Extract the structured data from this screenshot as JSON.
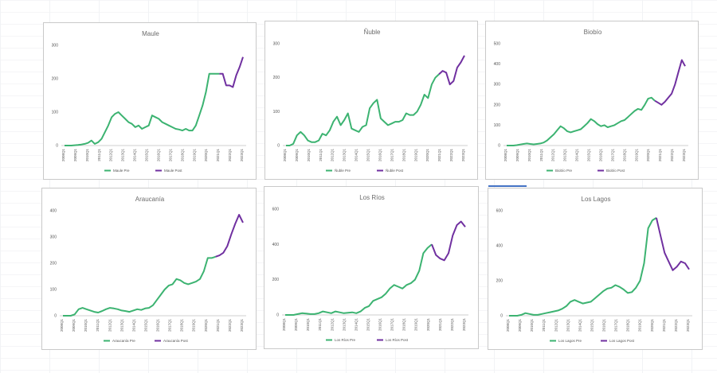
{
  "colors": {
    "pre": "#3cb371",
    "post": "#7030a0",
    "axis": "#bfbfbf",
    "title": "#6b6b6b"
  },
  "chart_data": [
    {
      "type": "line",
      "title": "Maule",
      "ylim": [
        0,
        300
      ],
      "yticks": [
        0,
        100,
        200,
        300
      ],
      "xtick_labels": [
        "2008Q1",
        "2009Q1",
        "2010Q1",
        "2011Q1",
        "2012Q1",
        "2013Q1",
        "2014Q1",
        "2015Q1",
        "2016Q1",
        "2017Q1",
        "2018Q1",
        "2019Q1",
        "2020Q1",
        "2021Q1",
        "2022Q1",
        "2023Q1"
      ],
      "series": [
        {
          "name": "Maule Pre",
          "values": [
            0,
            0,
            0,
            1,
            2,
            3,
            5,
            8,
            15,
            5,
            10,
            20,
            40,
            60,
            85,
            95,
            100,
            90,
            80,
            70,
            65,
            55,
            60,
            50,
            55,
            60,
            90,
            85,
            80,
            70,
            65,
            60,
            55,
            50,
            48,
            45,
            50,
            45,
            45,
            60,
            90,
            120,
            160,
            215,
            215,
            215,
            215
          ]
        },
        {
          "name": "Maule Post",
          "values": [
            215,
            215,
            180,
            180,
            175,
            210,
            235,
            265
          ]
        }
      ]
    },
    {
      "type": "line",
      "title": "Ñuble",
      "ylim": [
        0,
        300
      ],
      "yticks": [
        0,
        100,
        200,
        300
      ],
      "xtick_labels": [
        "2008Q1",
        "2009Q1",
        "2010Q1",
        "2011Q1",
        "2012Q1",
        "2013Q1",
        "2014Q1",
        "2015Q1",
        "2016Q1",
        "2017Q1",
        "2018Q1",
        "2019Q1",
        "2020Q1",
        "2021Q1",
        "2022Q1",
        "2023Q1"
      ],
      "series": [
        {
          "name": "Ñuble Pre",
          "values": [
            0,
            0,
            5,
            30,
            40,
            30,
            15,
            10,
            10,
            15,
            35,
            30,
            45,
            70,
            85,
            60,
            75,
            95,
            50,
            45,
            40,
            55,
            60,
            110,
            125,
            135,
            80,
            70,
            60,
            65,
            70,
            70,
            75,
            95,
            90,
            90,
            100,
            120,
            150,
            140,
            180,
            200,
            210
          ]
        },
        {
          "name": "Ñuble Post",
          "values": [
            210,
            220,
            215,
            180,
            190,
            230,
            245,
            265
          ]
        }
      ]
    },
    {
      "type": "line",
      "title": "Biobío",
      "ylim": [
        0,
        500
      ],
      "yticks": [
        0,
        100,
        200,
        300,
        400,
        500
      ],
      "xtick_labels": [
        "2008Q1",
        "2009Q1",
        "2010Q1",
        "2011Q1",
        "2012Q1",
        "2013Q1",
        "2014Q1",
        "2015Q1",
        "2016Q1",
        "2017Q1",
        "2018Q1",
        "2019Q1",
        "2020Q1",
        "2021Q1",
        "2022Q1",
        "2023Q1"
      ],
      "series": [
        {
          "name": "Biobío Pre",
          "values": [
            0,
            0,
            0,
            2,
            5,
            8,
            10,
            8,
            6,
            8,
            10,
            15,
            25,
            40,
            55,
            75,
            95,
            85,
            70,
            65,
            70,
            75,
            80,
            95,
            110,
            130,
            120,
            105,
            95,
            100,
            90,
            95,
            100,
            110,
            120,
            125,
            140,
            155,
            170,
            180,
            175,
            200,
            230,
            235,
            220
          ]
        },
        {
          "name": "Biobío Post",
          "values": [
            220,
            210,
            200,
            215,
            235,
            255,
            300,
            360,
            420,
            390
          ]
        }
      ]
    },
    {
      "type": "line",
      "title": "Araucanía",
      "ylim": [
        0,
        400
      ],
      "yticks": [
        0,
        100,
        200,
        300,
        400
      ],
      "xtick_labels": [
        "2008Q1",
        "2009Q1",
        "2010Q1",
        "2011Q1",
        "2012Q1",
        "2013Q1",
        "2014Q1",
        "2015Q1",
        "2016Q1",
        "2017Q1",
        "2018Q1",
        "2019Q1",
        "2020Q1",
        "2021Q1",
        "2022Q1",
        "2023Q1"
      ],
      "series": [
        {
          "name": "Araucanía Pre",
          "values": [
            0,
            0,
            0,
            5,
            25,
            30,
            25,
            20,
            15,
            12,
            18,
            25,
            30,
            28,
            25,
            20,
            18,
            15,
            20,
            25,
            22,
            28,
            30,
            40,
            60,
            80,
            100,
            115,
            120,
            140,
            135,
            125,
            120,
            125,
            130,
            140,
            170,
            220,
            220,
            225
          ]
        },
        {
          "name": "Araucanía Post",
          "values": [
            225,
            230,
            240,
            265,
            310,
            350,
            385,
            355
          ]
        }
      ]
    },
    {
      "type": "line",
      "title": "Los Ríos",
      "ylim": [
        0,
        600
      ],
      "yticks": [
        0,
        200,
        400,
        600
      ],
      "xtick_labels": [
        "2008Q1",
        "2009Q1",
        "2010Q1",
        "2011Q1",
        "2012Q1",
        "2013Q1",
        "2014Q1",
        "2015Q1",
        "2016Q1",
        "2017Q1",
        "2018Q1",
        "2019Q1",
        "2020Q1",
        "2021Q1",
        "2022Q1",
        "2023Q1"
      ],
      "series": [
        {
          "name": "Los Ríos Pre",
          "values": [
            0,
            0,
            0,
            5,
            10,
            8,
            5,
            5,
            10,
            20,
            15,
            10,
            20,
            15,
            10,
            12,
            15,
            10,
            20,
            40,
            50,
            80,
            90,
            100,
            120,
            150,
            170,
            160,
            150,
            170,
            180,
            200,
            250,
            350,
            380,
            400
          ]
        },
        {
          "name": "Los Ríos Post",
          "values": [
            400,
            340,
            320,
            310,
            350,
            450,
            510,
            530,
            500
          ]
        }
      ]
    },
    {
      "type": "line",
      "title": "Los Lagos",
      "ylim": [
        0,
        600
      ],
      "yticks": [
        0,
        200,
        400,
        600
      ],
      "xtick_labels": [
        "2008Q1",
        "2009Q1",
        "2010Q1",
        "2011Q1",
        "2012Q1",
        "2013Q1",
        "2014Q1",
        "2015Q1",
        "2016Q1",
        "2017Q1",
        "2018Q1",
        "2019Q1",
        "2020Q1",
        "2021Q1",
        "2022Q1",
        "2023Q1"
      ],
      "series": [
        {
          "name": "Los Lagos Pre",
          "values": [
            0,
            0,
            0,
            5,
            15,
            10,
            5,
            5,
            10,
            15,
            20,
            25,
            30,
            40,
            55,
            80,
            90,
            80,
            70,
            75,
            80,
            100,
            120,
            140,
            155,
            160,
            175,
            165,
            150,
            130,
            135,
            160,
            200,
            300,
            500,
            545,
            560
          ]
        },
        {
          "name": "Los Lagos Post",
          "values": [
            560,
            460,
            360,
            310,
            260,
            280,
            310,
            300,
            265
          ]
        }
      ]
    }
  ]
}
